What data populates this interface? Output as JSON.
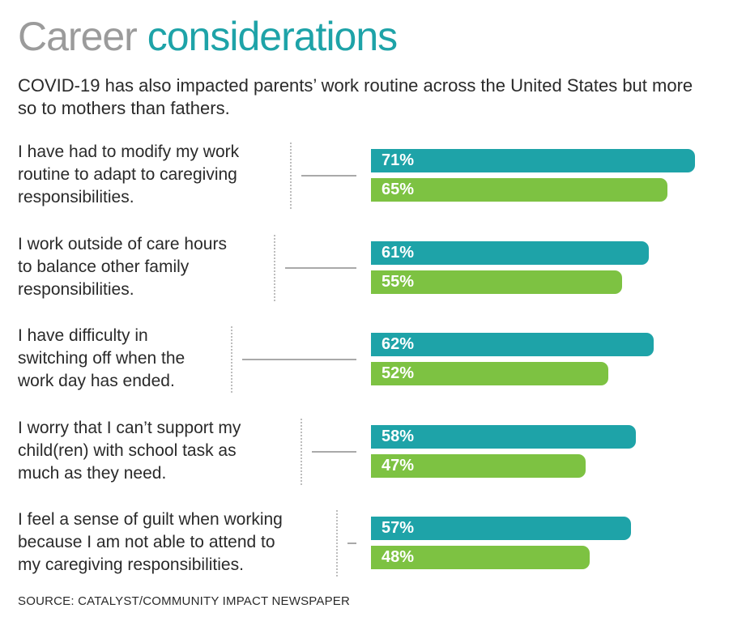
{
  "title": {
    "part1": "Career",
    "part2": "considerations"
  },
  "subtitle": "COVID-19 has also impacted parents’ work routine across the United States but more so to mothers than fathers.",
  "source": "SOURCE: CATALYST/COMMUNITY IMPACT NEWSPAPER",
  "colors": {
    "series_a": "#1ea3a8",
    "series_b": "#7dc242",
    "title_gray": "#9b9b9b"
  },
  "chart_data": {
    "type": "bar",
    "orientation": "horizontal",
    "categories": [
      "I have had to modify my work routine to adapt to caregiving responsibilities.",
      "I work outside of care hours to balance other family responsibilities.",
      "I have difficulty in switching off when the work day has ended.",
      "I worry that I can’t support my child(ren) with school task as much as they need.",
      "I feel a sense of guilt when working because I am not able to attend to my caregiving responsibilities."
    ],
    "category_lines": [
      [
        "I have had to modify my work",
        "routine to adapt to caregiving",
        "responsibilities."
      ],
      [
        "I work outside of care hours",
        "to balance other family",
        "responsibilities."
      ],
      [
        "I have difficulty in",
        "switching off when the",
        "work day has ended."
      ],
      [
        "I worry that I can’t support my",
        "child(ren) with school task as",
        "much as they need."
      ],
      [
        "I feel a sense of guilt when working",
        "because I am not able to attend to",
        "my caregiving responsibilities."
      ]
    ],
    "series": [
      {
        "values": [
          71,
          61,
          62,
          58,
          57
        ],
        "labels": [
          "71%",
          "61%",
          "62%",
          "58%",
          "57%"
        ],
        "color": "#1ea3a8"
      },
      {
        "values": [
          65,
          55,
          52,
          47,
          48
        ],
        "labels": [
          "65%",
          "55%",
          "52%",
          "47%",
          "48%"
        ],
        "color": "#7dc242"
      }
    ],
    "unit": "%",
    "legend": "none",
    "grid": false
  }
}
